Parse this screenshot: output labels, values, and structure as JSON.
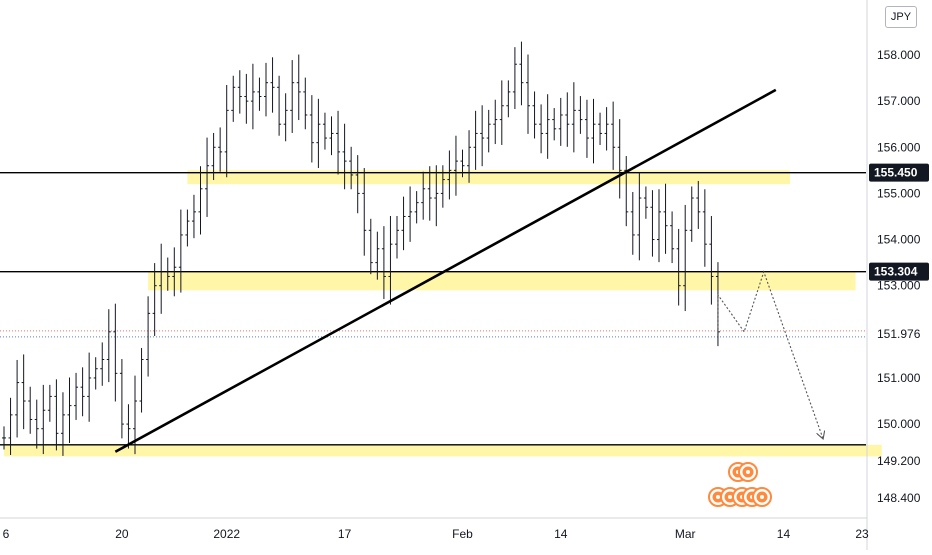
{
  "currency_badge": "JPY",
  "chart_data": {
    "type": "candlestick",
    "title": "",
    "ylim": [
      148.0,
      159.2
    ],
    "price_ticks": [
      "158.000",
      "157.000",
      "156.000",
      "155.000",
      "154.000",
      "153.000",
      "151.000",
      "150.000",
      "149.200",
      "148.400"
    ],
    "price_tags": [
      {
        "label": "155.450",
        "value": 155.45,
        "style": "boxed"
      },
      {
        "label": "153.304",
        "value": 153.304,
        "style": "boxed"
      },
      {
        "label": "151.976",
        "value": 151.976,
        "style": "plain"
      }
    ],
    "time_ticks": [
      {
        "label": "6",
        "bar": 0
      },
      {
        "label": "20",
        "bar": 18
      },
      {
        "label": "2022",
        "bar": 34
      },
      {
        "label": "17",
        "bar": 52
      },
      {
        "label": "Feb",
        "bar": 70
      },
      {
        "label": "14",
        "bar": 85
      },
      {
        "label": "Mar",
        "bar": 104
      },
      {
        "label": "14",
        "bar": 119
      },
      {
        "label": "23",
        "bar": 131
      }
    ],
    "closes": [
      149.7,
      150.2,
      150.9,
      150.5,
      150.1,
      149.9,
      150.3,
      150.6,
      149.8,
      150.2,
      150.4,
      150.8,
      150.6,
      151.0,
      151.2,
      151.4,
      152.0,
      151.1,
      150.0,
      149.9,
      150.5,
      151.4,
      152.4,
      153.0,
      153.3,
      153.2,
      153.4,
      154.1,
      154.4,
      154.6,
      155.1,
      155.6,
      156.0,
      155.9,
      156.8,
      157.3,
      157.1,
      157.0,
      157.2,
      157.1,
      157.4,
      157.3,
      156.5,
      156.8,
      157.4,
      157.2,
      156.7,
      156.1,
      156.5,
      156.2,
      156.3,
      155.9,
      155.7,
      155.4,
      155.0,
      154.2,
      153.5,
      153.8,
      153.2,
      153.9,
      154.2,
      154.5,
      154.6,
      154.8,
      155.1,
      154.9,
      155.0,
      155.3,
      155.5,
      155.7,
      155.6,
      156.0,
      156.3,
      156.2,
      156.5,
      156.6,
      156.9,
      157.2,
      157.8,
      157.4,
      156.9,
      156.5,
      156.3,
      156.6,
      156.4,
      156.7,
      156.5,
      156.8,
      156.6,
      156.2,
      156.5,
      156.3,
      156.5,
      156.0,
      155.5,
      154.6,
      154.1,
      154.9,
      154.7,
      154.0,
      154.6,
      154.3,
      153.8,
      153.0,
      154.2,
      154.9,
      154.6,
      153.9,
      153.2,
      152.0
    ],
    "projection": [
      {
        "bar": 109,
        "value": 152.8
      },
      {
        "bar": 113,
        "value": 152.0
      },
      {
        "bar": 116,
        "value": 153.3
      },
      {
        "bar": 125,
        "value": 149.7
      }
    ],
    "trendline": [
      {
        "bar": 17,
        "value": 149.4
      },
      {
        "bar": 116,
        "value": 157.2
      }
    ],
    "horizontal_lines": [
      155.45,
      153.304,
      149.55
    ],
    "zones": [
      {
        "from_bar": 28,
        "to_bar": 120,
        "low": 155.2,
        "high": 155.5
      },
      {
        "from_bar": 22,
        "to_bar": 130,
        "low": 152.9,
        "high": 153.3
      },
      {
        "from_bar": 0,
        "to_bar": 134,
        "low": 149.3,
        "high": 149.55
      }
    ],
    "colors": {
      "bars": "#131722",
      "zone": "#fff59d",
      "trendline": "#000000",
      "projection": "#555555",
      "price_tag_bg": "#131722",
      "event_icon": "#ff8a3d",
      "red_dotted": "#e57373",
      "blue_dotted": "#5b7bd5"
    },
    "event_icons": [
      "event-icon",
      "event-icon",
      "event-icon",
      "event-icon",
      "event-icon",
      "event-icon",
      "event-icon"
    ]
  }
}
